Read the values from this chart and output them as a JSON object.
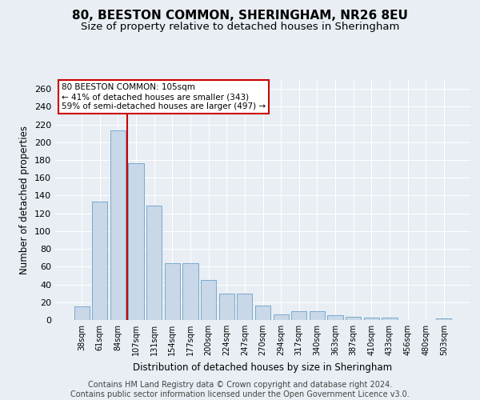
{
  "title1": "80, BEESTON COMMON, SHERINGHAM, NR26 8EU",
  "title2": "Size of property relative to detached houses in Sheringham",
  "xlabel": "Distribution of detached houses by size in Sheringham",
  "ylabel": "Number of detached properties",
  "footer1": "Contains HM Land Registry data © Crown copyright and database right 2024.",
  "footer2": "Contains public sector information licensed under the Open Government Licence v3.0.",
  "categories": [
    "38sqm",
    "61sqm",
    "84sqm",
    "107sqm",
    "131sqm",
    "154sqm",
    "177sqm",
    "200sqm",
    "224sqm",
    "247sqm",
    "270sqm",
    "294sqm",
    "317sqm",
    "340sqm",
    "363sqm",
    "387sqm",
    "410sqm",
    "433sqm",
    "456sqm",
    "480sqm",
    "503sqm"
  ],
  "values": [
    15,
    133,
    213,
    176,
    129,
    64,
    64,
    45,
    30,
    30,
    16,
    6,
    10,
    10,
    5,
    4,
    3,
    3,
    0,
    0,
    2
  ],
  "bar_color": "#c8d8e8",
  "bar_edge_color": "#7aa8cc",
  "highlight_line_index": 2.5,
  "highlight_line_color": "#cc0000",
  "annotation_line1": "80 BEESTON COMMON: 105sqm",
  "annotation_line2": "← 41% of detached houses are smaller (343)",
  "annotation_line3": "59% of semi-detached houses are larger (497) →",
  "annotation_box_color": "#ffffff",
  "annotation_box_edge_color": "#cc0000",
  "ylim": [
    0,
    270
  ],
  "yticks": [
    0,
    20,
    40,
    60,
    80,
    100,
    120,
    140,
    160,
    180,
    200,
    220,
    240,
    260
  ],
  "bg_color": "#e8eef4",
  "grid_color": "#ffffff",
  "title1_fontsize": 11,
  "title2_fontsize": 9.5,
  "xlabel_fontsize": 8.5,
  "ylabel_fontsize": 8.5,
  "footer_fontsize": 7
}
